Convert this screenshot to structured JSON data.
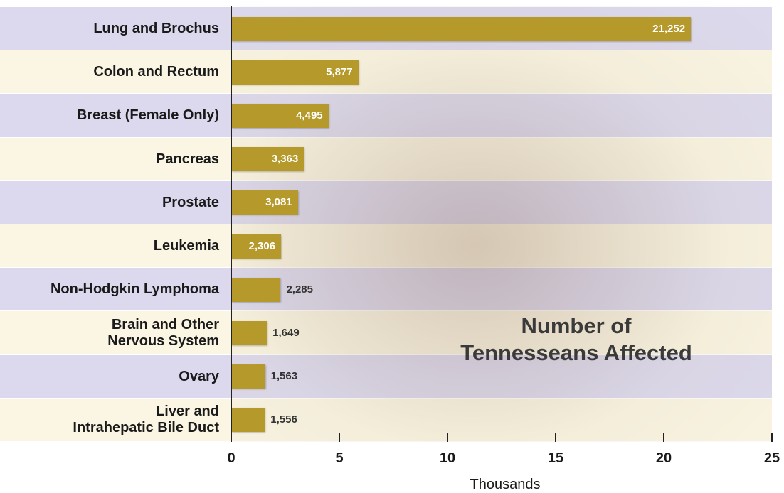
{
  "chart_data": {
    "type": "bar",
    "orientation": "horizontal",
    "categories": [
      "Lung and Brochus",
      "Colon and Rectum",
      "Breast (Female Only)",
      "Pancreas",
      "Prostate",
      "Leukemia",
      "Non-Hodgkin Lymphoma",
      "Brain and Other\nNervous System",
      "Ovary",
      "Liver and\nIntrahepatic Bile Duct"
    ],
    "values": [
      21.252,
      5.877,
      4.495,
      3.363,
      3.081,
      2.306,
      2.285,
      1.649,
      1.563,
      1.556
    ],
    "value_labels": [
      "21,252",
      "5,877",
      "4,495",
      "3,363",
      "3,081",
      "2,306",
      "2,285",
      "1,649",
      "1,563",
      "1,556"
    ],
    "color": "#b5992a",
    "xlim": [
      0,
      25
    ],
    "xticks": [
      0,
      5,
      10,
      15,
      20,
      25
    ],
    "xlabel": "Thousands",
    "annotation": "Number of\nTennesseans Affected"
  }
}
